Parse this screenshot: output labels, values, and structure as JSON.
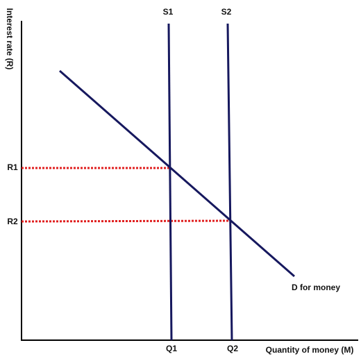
{
  "diagram": {
    "y_axis_label": "Interest rate (R)",
    "x_axis_label": "Quantity of money (M)",
    "supply_lines": [
      "S1",
      "S2"
    ],
    "rate_labels": [
      "R1",
      "R2"
    ],
    "quantity_labels": [
      "Q1",
      "Q2"
    ],
    "demand_label": "D for money"
  }
}
